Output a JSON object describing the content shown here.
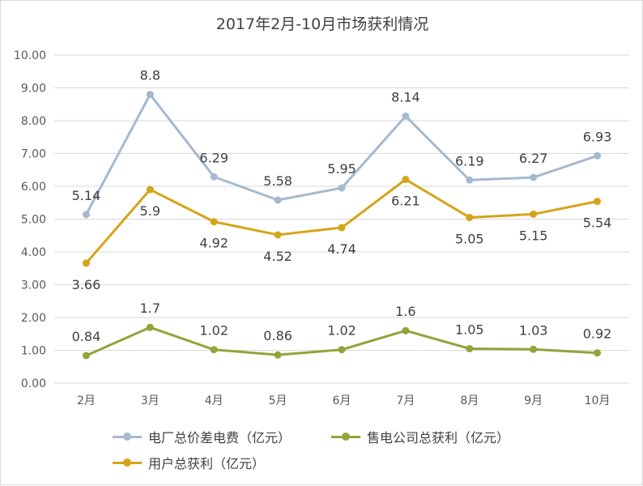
{
  "chart_data": {
    "type": "line",
    "title": "2017年2月-10月市场获利情况",
    "categories": [
      "2月",
      "3月",
      "4月",
      "5月",
      "6月",
      "7月",
      "8月",
      "9月",
      "10月"
    ],
    "ylim": [
      0,
      10
    ],
    "yticks": [
      "0.00",
      "1.00",
      "2.00",
      "3.00",
      "4.00",
      "5.00",
      "6.00",
      "7.00",
      "8.00",
      "9.00",
      "10.00"
    ],
    "grid": true,
    "legend_position": "bottom",
    "series": [
      {
        "name": "电厂总价差电费（亿元）",
        "color": "#a5b9cf",
        "values": [
          5.14,
          8.8,
          6.29,
          5.58,
          5.95,
          8.14,
          6.19,
          6.27,
          6.93
        ],
        "labels": [
          "5.14",
          "8.8",
          "6.29",
          "5.58",
          "5.95",
          "8.14",
          "6.19",
          "6.27",
          "6.93"
        ]
      },
      {
        "name": "售电公司总获利（亿元）",
        "color": "#8ea63a",
        "values": [
          0.84,
          1.7,
          1.02,
          0.86,
          1.02,
          1.6,
          1.05,
          1.03,
          0.92
        ],
        "labels": [
          "0.84",
          "1.7",
          "1.02",
          "0.86",
          "1.02",
          "1.6",
          "1.05",
          "1.03",
          "0.92"
        ]
      },
      {
        "name": "用户总获利（亿元）",
        "color": "#d6a418",
        "values": [
          3.66,
          5.9,
          4.92,
          4.52,
          4.74,
          6.21,
          5.05,
          5.15,
          5.54
        ],
        "labels": [
          "3.66",
          "5.9",
          "4.92",
          "4.52",
          "4.74",
          "6.21",
          "5.05",
          "5.15",
          "5.54"
        ]
      }
    ]
  },
  "legend": {
    "item0": "电厂总价差电费（亿元）",
    "item1": "售电公司总获利（亿元）",
    "item2": "用户总获利（亿元）"
  }
}
